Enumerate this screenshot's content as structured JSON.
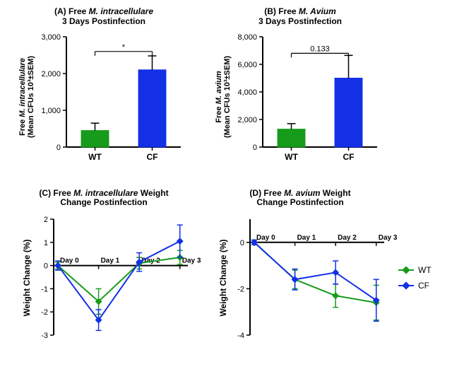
{
  "colors": {
    "wt": "#179b1a",
    "cf": "#1330e6",
    "axis": "#000000",
    "bg": "#ffffff"
  },
  "legend": {
    "wt": "WT",
    "cf": "CF",
    "marker_size": 8,
    "line_width": 2
  },
  "panelA": {
    "title_pre": "(A) Free ",
    "title_em": "M. intracellulare",
    "title_post": "",
    "title_line2": "3 Days Postinfection",
    "ylabel_pre": "Free ",
    "ylabel_em": "M. intracellulare",
    "ylabel_line2": "(Mean CFUs 10³±SEM)",
    "type": "bar",
    "ylim": [
      0,
      3000
    ],
    "yticks": [
      0,
      1000,
      2000,
      3000
    ],
    "categories": [
      "WT",
      "CF"
    ],
    "values": [
      450,
      2100
    ],
    "errors": [
      200,
      380
    ],
    "bar_colors": [
      "#179b1a",
      "#1330e6"
    ],
    "bar_width": 0.48,
    "sig_text": "*",
    "sig_y": 2600,
    "title_fontsize": 12,
    "ylabel_fontsize": 11,
    "axis_width": 2
  },
  "panelB": {
    "title_pre": "(B) Free ",
    "title_em": "M. Avium",
    "title_post": "",
    "title_line2": "3 Days Postinfection",
    "ylabel_pre": "Free ",
    "ylabel_em": "M. avium",
    "ylabel_line2": "(Mean CFUs 10³±SEM)",
    "type": "bar",
    "ylim": [
      0,
      8000
    ],
    "yticks": [
      0,
      2000,
      4000,
      6000,
      8000
    ],
    "categories": [
      "WT",
      "CF"
    ],
    "values": [
      1300,
      5000
    ],
    "errors": [
      400,
      1650
    ],
    "bar_colors": [
      "#179b1a",
      "#1330e6"
    ],
    "bar_width": 0.48,
    "sig_text": "0.133",
    "sig_y": 6800,
    "title_fontsize": 12,
    "ylabel_fontsize": 11,
    "axis_width": 2
  },
  "panelC": {
    "title_pre": "(C) Free ",
    "title_em": "M. intracellulare",
    "title_post": " Weight",
    "title_line2": "Change Postinfection",
    "ylabel": "Weight Change (%)",
    "type": "line",
    "ylim": [
      -3,
      2
    ],
    "yticks": [
      -3,
      -2,
      -1,
      0,
      1,
      2
    ],
    "x_labels": [
      "Day 0",
      "Day 1",
      "Day 2",
      "Day 3"
    ],
    "x_values": [
      0,
      1,
      2,
      3
    ],
    "series": {
      "WT": {
        "color": "#179b1a",
        "y": [
          0.0,
          -1.55,
          0.1,
          0.35
        ],
        "err": [
          0.15,
          0.55,
          0.25,
          0.3
        ]
      },
      "CF": {
        "color": "#1330e6",
        "y": [
          0.0,
          -2.35,
          0.15,
          1.05
        ],
        "err": [
          0.2,
          0.45,
          0.4,
          0.7
        ]
      }
    },
    "marker_size": 7,
    "line_width": 2,
    "title_fontsize": 12,
    "ylabel_fontsize": 12,
    "axis_width": 2
  },
  "panelD": {
    "title_pre": "(D) Free ",
    "title_em": "M. avium",
    "title_post": " Weight",
    "title_line2": "Change Postinfection",
    "ylabel": "Weight Change (%)",
    "type": "line",
    "ylim": [
      -4,
      1
    ],
    "yticks": [
      -4,
      -2,
      0
    ],
    "x_labels": [
      "Day 0",
      "Day 1",
      "Day 2",
      "Day 3"
    ],
    "x_values": [
      0,
      1,
      2,
      3
    ],
    "series": {
      "WT": {
        "color": "#179b1a",
        "y": [
          0.0,
          -1.6,
          -2.3,
          -2.6
        ],
        "err": [
          0.1,
          0.4,
          0.5,
          0.75
        ]
      },
      "CF": {
        "color": "#1330e6",
        "y": [
          0.0,
          -1.6,
          -1.3,
          -2.5
        ],
        "err": [
          0.1,
          0.45,
          0.5,
          0.9
        ]
      }
    },
    "marker_size": 7,
    "line_width": 2,
    "title_fontsize": 12,
    "ylabel_fontsize": 12,
    "axis_width": 2
  }
}
